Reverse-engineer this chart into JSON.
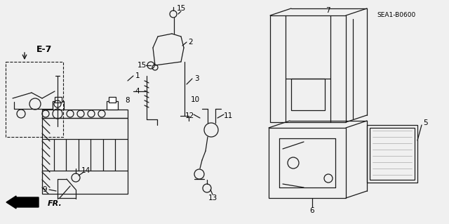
{
  "bg_color": "#f0f0f0",
  "line_color": "#1a1a1a",
  "text_color": "#000000",
  "font_size": 7.5,
  "dpi": 100,
  "fig_w": 6.4,
  "fig_h": 3.19,
  "xlim": [
    0,
    640
  ],
  "ylim": [
    0,
    319
  ],
  "sea_label": "SEA1-B0600",
  "sea_x": 565,
  "sea_y": 22
}
